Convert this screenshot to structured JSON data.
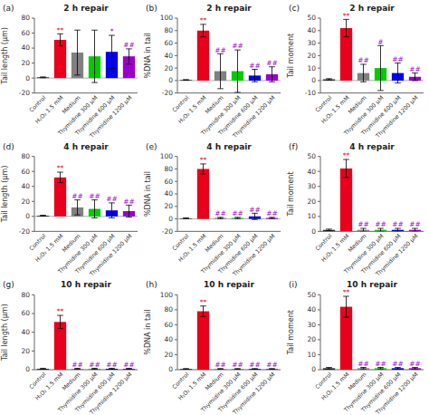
{
  "chart_data": [
    {
      "type": "bar",
      "title": "2 h repair",
      "ylabel": "Tail length (μm)",
      "annotations": [
        "(a)"
      ],
      "categories": [
        "Control",
        "H₂O₂ 1.5 mM",
        "Medium",
        "Thymidine 300 μM",
        "Thymidine 600 μM",
        "Thymidine 1200 μM"
      ],
      "values": [
        1,
        51,
        34,
        29,
        35,
        29
      ],
      "errors": [
        0.5,
        8,
        30,
        35,
        22,
        10
      ],
      "colors": [
        "#2d2d2d",
        "#e8001c",
        "#808080",
        "#00cc00",
        "#0000ee",
        "#9900cc"
      ],
      "significance": [
        null,
        "**",
        null,
        null,
        "*",
        "##"
      ],
      "significance_colors": [
        null,
        "#e8001c",
        null,
        null,
        "#9900cc",
        "#9900cc"
      ],
      "ylim": [
        -20,
        80
      ],
      "yticks": [
        -20,
        0,
        20,
        40,
        60,
        80
      ]
    },
    {
      "type": "bar",
      "title": "2 h repair",
      "ylabel": "%DNA in tail",
      "annotations": [
        "(b)"
      ],
      "categories": [
        "Control",
        "H₂O₂ 1.5 mM",
        "Medium",
        "Thymidine 300 μM",
        "Thymidine 600 μM",
        "Thymidine 1200 μM"
      ],
      "values": [
        1,
        80,
        15,
        15,
        8,
        10
      ],
      "errors": [
        0.5,
        10,
        28,
        34,
        10,
        12
      ],
      "colors": [
        "#2d2d2d",
        "#e8001c",
        "#808080",
        "#00cc00",
        "#0000ee",
        "#9900cc"
      ],
      "significance": [
        null,
        "**",
        "##",
        "##",
        "##",
        "##"
      ],
      "significance_colors": [
        null,
        "#e8001c",
        "#9900cc",
        "#9900cc",
        "#9900cc",
        "#9900cc"
      ],
      "ylim": [
        -20,
        100
      ],
      "yticks": [
        -20,
        0,
        20,
        40,
        60,
        80,
        100
      ]
    },
    {
      "type": "bar",
      "title": "2 h repair",
      "ylabel": "Tail moment",
      "annotations": [
        "(c)"
      ],
      "categories": [
        "Control",
        "H₂O₂ 1.5 mM",
        "Medium",
        "Thymidine 300 μM",
        "Thymidine 600 μM",
        "Thymidine 1200 μM"
      ],
      "values": [
        1,
        42,
        6,
        10,
        6,
        3
      ],
      "errors": [
        0.5,
        7,
        7,
        18,
        8,
        3
      ],
      "colors": [
        "#2d2d2d",
        "#e8001c",
        "#808080",
        "#00cc00",
        "#0000ee",
        "#9900cc"
      ],
      "significance": [
        null,
        "**",
        "##",
        "#",
        "##",
        "##"
      ],
      "significance_colors": [
        null,
        "#e8001c",
        "#9900cc",
        "#9900cc",
        "#9900cc",
        "#9900cc"
      ],
      "ylim": [
        -10,
        50
      ],
      "yticks": [
        -10,
        0,
        10,
        20,
        30,
        40,
        50
      ]
    },
    {
      "type": "bar",
      "title": "4 h repair",
      "ylabel": "Tail length (μm)",
      "annotations": [
        "(d)"
      ],
      "categories": [
        "Control",
        "H₂O₂ 1.5 mM",
        "Medium",
        "Thymidine 300 μM",
        "Thymidine 600 μM",
        "Thymidine 1200 μM"
      ],
      "values": [
        1,
        52,
        12,
        10,
        8,
        7
      ],
      "errors": [
        0.5,
        7,
        10,
        12,
        10,
        8
      ],
      "colors": [
        "#2d2d2d",
        "#e8001c",
        "#808080",
        "#00cc00",
        "#0000ee",
        "#9900cc"
      ],
      "significance": [
        null,
        "**",
        "##",
        "##",
        "##",
        "##"
      ],
      "significance_colors": [
        null,
        "#e8001c",
        "#9900cc",
        "#9900cc",
        "#9900cc",
        "#9900cc"
      ],
      "ylim": [
        -20,
        80
      ],
      "yticks": [
        -20,
        0,
        20,
        40,
        60,
        80
      ]
    },
    {
      "type": "bar",
      "title": "4 h repair",
      "ylabel": "%DNA in tail",
      "annotations": [
        "(e)"
      ],
      "categories": [
        "Control",
        "H₂O₂ 1.5 mM",
        "Medium",
        "Thymidine 300 μM",
        "Thymidine 600 μM",
        "Thymidine 1200 μM"
      ],
      "values": [
        1,
        80,
        1.5,
        1.5,
        4,
        1.5
      ],
      "errors": [
        0.5,
        8,
        1,
        1,
        5,
        1
      ],
      "colors": [
        "#2d2d2d",
        "#e8001c",
        "#808080",
        "#00cc00",
        "#0000ee",
        "#9900cc"
      ],
      "significance": [
        null,
        "**",
        "##",
        "##",
        "##",
        "##"
      ],
      "significance_colors": [
        null,
        "#e8001c",
        "#9900cc",
        "#9900cc",
        "#9900cc",
        "#9900cc"
      ],
      "ylim": [
        -20,
        100
      ],
      "yticks": [
        -20,
        0,
        20,
        40,
        60,
        80,
        100
      ]
    },
    {
      "type": "bar",
      "title": "4 h repair",
      "ylabel": "Tail moment",
      "annotations": [
        "(f)"
      ],
      "categories": [
        "Control",
        "H₂O₂ 1.5 mM",
        "Medium",
        "Thymidine 300 μM",
        "Thymidine 600 μM",
        "Thymidine 1200 μM"
      ],
      "values": [
        1,
        42,
        1,
        1,
        1,
        1
      ],
      "errors": [
        0.5,
        6,
        1,
        1,
        1,
        1
      ],
      "colors": [
        "#2d2d2d",
        "#e8001c",
        "#808080",
        "#00cc00",
        "#0000ee",
        "#9900cc"
      ],
      "significance": [
        null,
        "**",
        "##",
        "##",
        "##",
        "##"
      ],
      "significance_colors": [
        null,
        "#e8001c",
        "#9900cc",
        "#9900cc",
        "#9900cc",
        "#9900cc"
      ],
      "ylim": [
        0,
        50
      ],
      "yticks": [
        0,
        10,
        20,
        30,
        40,
        50
      ]
    },
    {
      "type": "bar",
      "title": "10 h repair",
      "ylabel": "Tail length (μm)",
      "annotations": [
        "(g)"
      ],
      "categories": [
        "Control",
        "H₂O₂ 1.5 mM",
        "Medium",
        "Thymidine 300 μM",
        "Thymidine 600 μM",
        "Thymidine 1200 μM"
      ],
      "values": [
        1,
        51,
        1,
        1,
        1,
        1
      ],
      "errors": [
        0.5,
        7,
        0.5,
        0.5,
        0.5,
        0.5
      ],
      "colors": [
        "#2d2d2d",
        "#e8001c",
        "#808080",
        "#00cc00",
        "#0000ee",
        "#9900cc"
      ],
      "significance": [
        null,
        "**",
        "##",
        "##",
        "##",
        "##"
      ],
      "significance_colors": [
        null,
        "#e8001c",
        "#9900cc",
        "#9900cc",
        "#9900cc",
        "#9900cc"
      ],
      "ylim": [
        0,
        80
      ],
      "yticks": [
        0,
        20,
        40,
        60,
        80
      ]
    },
    {
      "type": "bar",
      "title": "10 h repair",
      "ylabel": "%DNA in tail",
      "annotations": [
        "(h)"
      ],
      "categories": [
        "Control",
        "H₂O₂ 1.5 mM",
        "Medium",
        "Thymidine 300 μM",
        "Thymidine 600 μM",
        "Thymidine 1200 μM"
      ],
      "values": [
        1,
        78,
        1,
        1,
        1,
        1
      ],
      "errors": [
        0.5,
        7,
        0.5,
        0.5,
        0.5,
        0.5
      ],
      "colors": [
        "#2d2d2d",
        "#e8001c",
        "#808080",
        "#00cc00",
        "#0000ee",
        "#9900cc"
      ],
      "significance": [
        null,
        "**",
        "##",
        "##",
        "##",
        "##"
      ],
      "significance_colors": [
        null,
        "#e8001c",
        "#9900cc",
        "#9900cc",
        "#9900cc",
        "#9900cc"
      ],
      "ylim": [
        0,
        100
      ],
      "yticks": [
        0,
        20,
        40,
        60,
        80,
        100
      ]
    },
    {
      "type": "bar",
      "title": "10 h repair",
      "ylabel": "Tail moment",
      "annotations": [
        "(i)"
      ],
      "categories": [
        "Control",
        "H₂O₂ 1.5 mM",
        "Medium",
        "Thymidine 300 μM",
        "Thymidine 600 μM",
        "Thymidine 1200 μM"
      ],
      "values": [
        1,
        42,
        1,
        1,
        1,
        1
      ],
      "errors": [
        0.5,
        7,
        0.5,
        0.5,
        0.5,
        0.5
      ],
      "colors": [
        "#2d2d2d",
        "#e8001c",
        "#808080",
        "#00cc00",
        "#0000ee",
        "#9900cc"
      ],
      "significance": [
        null,
        "**",
        "##",
        "##",
        "##",
        "##"
      ],
      "significance_colors": [
        null,
        "#e8001c",
        "#9900cc",
        "#9900cc",
        "#9900cc",
        "#9900cc"
      ],
      "ylim": [
        0,
        50
      ],
      "yticks": [
        0,
        10,
        20,
        30,
        40,
        50
      ]
    }
  ]
}
